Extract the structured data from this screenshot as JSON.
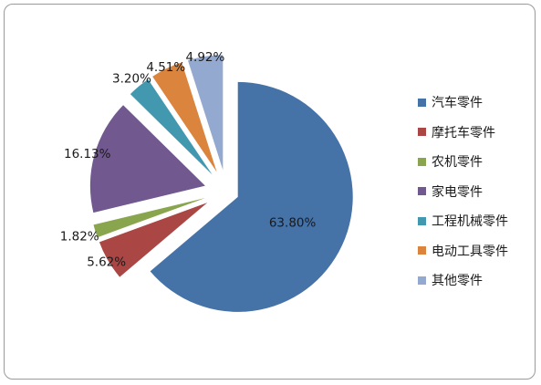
{
  "chart_data": {
    "type": "pie",
    "exploded": true,
    "legend_position": "right",
    "slices": [
      {
        "name": "汽车零件",
        "value": 63.8,
        "label": "63.80%",
        "color": "#4572A7"
      },
      {
        "name": "摩托车零件",
        "value": 5.62,
        "label": "5.62%",
        "color": "#AA4643"
      },
      {
        "name": "农机零件",
        "value": 1.82,
        "label": "1.82%",
        "color": "#89A54E"
      },
      {
        "name": "家电零件",
        "value": 16.13,
        "label": "16.13%",
        "color": "#71588F"
      },
      {
        "name": "工程机械零件",
        "value": 3.2,
        "label": "3.20%",
        "color": "#4198AF"
      },
      {
        "name": "电动工具零件",
        "value": 4.51,
        "label": "4.51%",
        "color": "#DB843D"
      },
      {
        "name": "其他零件",
        "value": 4.92,
        "label": "4.92%",
        "color": "#93A9CF"
      }
    ]
  }
}
